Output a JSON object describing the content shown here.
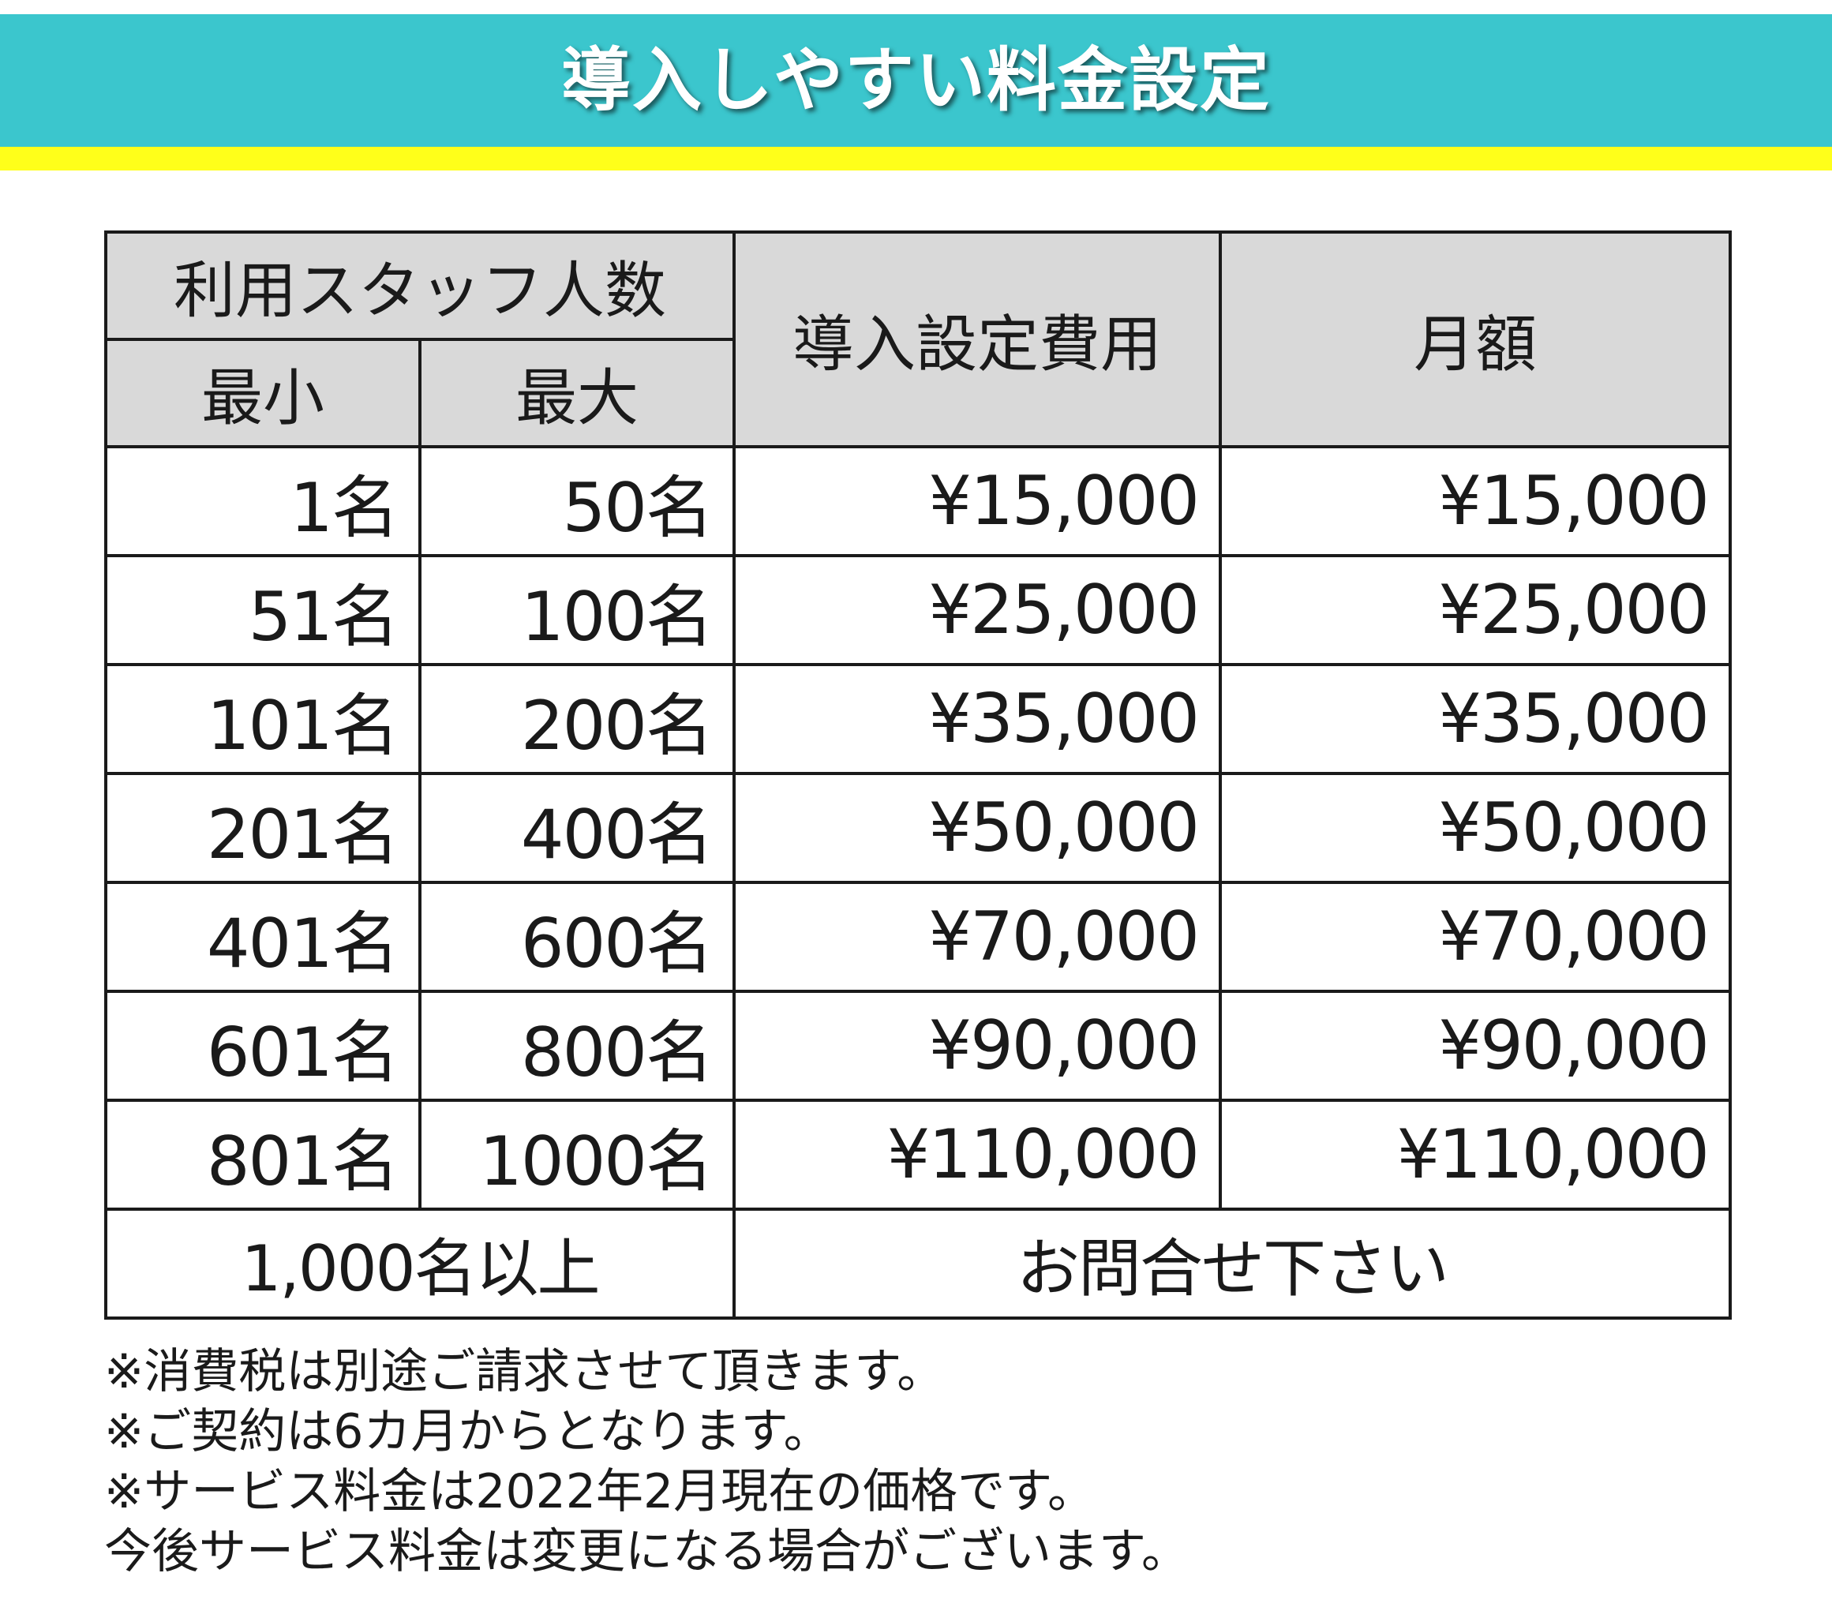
{
  "banner": {
    "title": "導入しやすい料金設定",
    "bg_color": "#3bc6cd",
    "stripe_color": "#ffff1a"
  },
  "table": {
    "header": {
      "staff_count": "利用スタッフ人数",
      "min": "最小",
      "max": "最大",
      "setup_fee": "導入設定費用",
      "monthly": "月額"
    },
    "rows": [
      {
        "min": "1名",
        "max": "50名",
        "setup": "¥15,000",
        "monthly": "¥15,000"
      },
      {
        "min": "51名",
        "max": "100名",
        "setup": "¥25,000",
        "monthly": "¥25,000"
      },
      {
        "min": "101名",
        "max": "200名",
        "setup": "¥35,000",
        "monthly": "¥35,000"
      },
      {
        "min": "201名",
        "max": "400名",
        "setup": "¥50,000",
        "monthly": "¥50,000"
      },
      {
        "min": "401名",
        "max": "600名",
        "setup": "¥70,000",
        "monthly": "¥70,000"
      },
      {
        "min": "601名",
        "max": "800名",
        "setup": "¥90,000",
        "monthly": "¥90,000"
      },
      {
        "min": "801名",
        "max": "1000名",
        "setup": "¥110,000",
        "monthly": "¥110,000"
      }
    ],
    "last_row": {
      "range": "1,000名以上",
      "price": "お問合せ下さい"
    }
  },
  "notes": [
    "※消費税は別途ご請求させて頂きます。",
    "※ご契約は6カ月からとなります。",
    "※サービス料金は2022年2月現在の価格です。",
    "今後サービス料金は変更になる場合がございます。"
  ]
}
